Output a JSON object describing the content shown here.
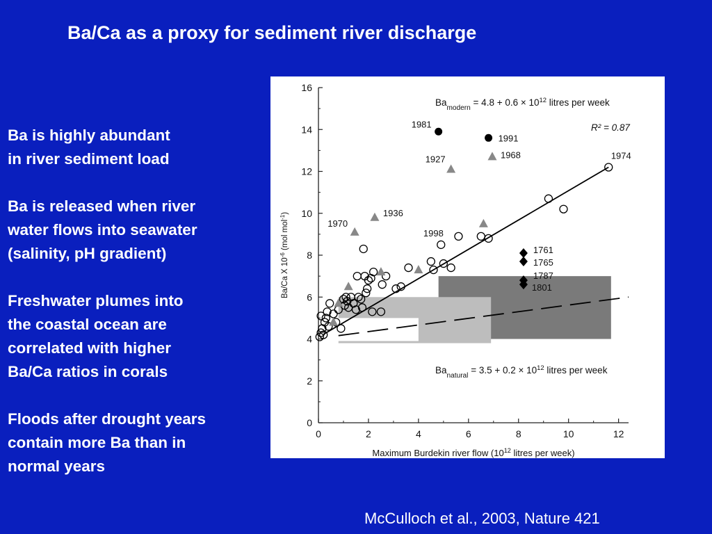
{
  "slide": {
    "title": "Ba/Ca as a proxy for sediment river discharge",
    "bullets": [
      {
        "lines": [
          "Ba is highly abundant",
          "in river sediment load"
        ]
      },
      {
        "lines": [
          "Ba is released when river",
          "water flows into seawater",
          "(salinity, pH gradient)"
        ]
      },
      {
        "lines": [
          "Freshwater plumes into",
          "the coastal ocean are",
          "correlated with higher",
          "Ba/Ca ratios in corals"
        ]
      },
      {
        "lines": [
          "Floods after drought years",
          "contain more Ba than in",
          "normal years"
        ]
      }
    ],
    "citation": "McCulloch et al., 2003, Nature 421"
  },
  "chart_data": {
    "type": "scatter",
    "xlabel": "Maximum Burdekin river flow  (10^12 litres per week)",
    "ylabel": "Ba/Ca X 10^-6 (mol mol^-1)",
    "xlim": [
      0,
      12.4
    ],
    "ylim": [
      0,
      16
    ],
    "x_ticks": [
      0,
      2,
      4,
      6,
      8,
      10,
      12
    ],
    "y_ticks": [
      0,
      2,
      4,
      6,
      8,
      10,
      12,
      14,
      16
    ],
    "grid": false,
    "equations": {
      "modern": {
        "symbol": "Ba",
        "subscript": "modern",
        "text": "= 4.8 + 0.6 × 10^12 litres per week",
        "intercept": 4.8,
        "slope": 0.6
      },
      "natural": {
        "symbol": "Ba",
        "subscript": "natural",
        "text": "= 3.5 + 0.2 × 10^12 litres per week",
        "intercept": 3.5,
        "slope": 0.2
      },
      "r2": "R² = 0.87"
    },
    "rectangles": [
      {
        "x0": 4.8,
        "x1": 11.7,
        "y0": 4.0,
        "y1": 7.0,
        "color": "#7a7a7a"
      },
      {
        "x0": 0.8,
        "x1": 6.9,
        "y0": 3.8,
        "y1": 6.0,
        "color": "#bdbdbd"
      },
      {
        "x0": 0.35,
        "x1": 4.0,
        "y0": 3.9,
        "y1": 5.0,
        "color": "#ffffff"
      }
    ],
    "series": [
      {
        "marker": "open-circle",
        "points": [
          [
            0.05,
            4.1
          ],
          [
            0.1,
            4.3
          ],
          [
            0.15,
            4.5
          ],
          [
            0.2,
            4.2
          ],
          [
            0.25,
            4.8
          ],
          [
            0.1,
            5.1
          ],
          [
            0.3,
            5.0
          ],
          [
            0.35,
            5.3
          ],
          [
            0.4,
            4.6
          ],
          [
            0.45,
            5.7
          ],
          [
            0.6,
            5.2
          ],
          [
            0.7,
            4.8
          ],
          [
            0.8,
            5.4
          ],
          [
            0.9,
            4.5
          ],
          [
            1.0,
            5.9
          ],
          [
            1.05,
            5.6
          ],
          [
            1.1,
            6.0
          ],
          [
            1.15,
            5.8
          ],
          [
            1.2,
            5.5
          ],
          [
            1.3,
            6.0
          ],
          [
            1.4,
            5.7
          ],
          [
            1.5,
            5.4
          ],
          [
            1.55,
            7.0
          ],
          [
            1.6,
            6.0
          ],
          [
            1.7,
            5.9
          ],
          [
            1.75,
            5.5
          ],
          [
            1.8,
            8.3
          ],
          [
            1.85,
            7.0
          ],
          [
            1.9,
            6.2
          ],
          [
            1.95,
            6.4
          ],
          [
            2.0,
            6.8
          ],
          [
            2.1,
            6.9
          ],
          [
            2.2,
            7.2
          ],
          [
            2.15,
            5.3
          ],
          [
            2.5,
            5.3
          ],
          [
            2.55,
            6.6
          ],
          [
            2.7,
            7.0
          ],
          [
            3.1,
            6.4
          ],
          [
            3.3,
            6.5
          ],
          [
            3.6,
            7.4
          ],
          [
            4.5,
            7.7
          ],
          [
            4.6,
            7.3
          ],
          [
            4.9,
            8.5
          ],
          [
            5.0,
            7.6
          ],
          [
            5.3,
            7.4
          ],
          [
            5.6,
            8.9
          ],
          [
            6.5,
            8.9
          ],
          [
            6.8,
            8.8
          ],
          [
            9.2,
            10.7
          ],
          [
            9.8,
            10.2
          ],
          [
            11.6,
            12.2
          ]
        ]
      },
      {
        "marker": "filled-circle",
        "points": [
          [
            4.8,
            13.9
          ],
          [
            6.8,
            13.6
          ]
        ],
        "labels": [
          "1981",
          "1991"
        ]
      },
      {
        "marker": "triangle",
        "points": [
          [
            0.6,
            4.8
          ],
          [
            0.8,
            5.7
          ],
          [
            1.2,
            6.5
          ],
          [
            1.45,
            9.1
          ],
          [
            2.25,
            9.8
          ],
          [
            2.5,
            7.2
          ],
          [
            4.0,
            7.3
          ],
          [
            5.3,
            12.1
          ],
          [
            6.6,
            9.5
          ],
          [
            6.95,
            12.7
          ]
        ],
        "labels": [
          "",
          "",
          "",
          "1970",
          "1936",
          "",
          "",
          "1927",
          "",
          "1968"
        ]
      },
      {
        "marker": "diamond",
        "points": [
          [
            8.2,
            8.1
          ],
          [
            8.2,
            7.7
          ],
          [
            8.2,
            6.8
          ],
          [
            8.2,
            6.6
          ]
        ],
        "labels": [
          "1761",
          "1765",
          "1787",
          "1801"
        ]
      }
    ],
    "annotations": [
      "1974",
      "1998"
    ]
  }
}
